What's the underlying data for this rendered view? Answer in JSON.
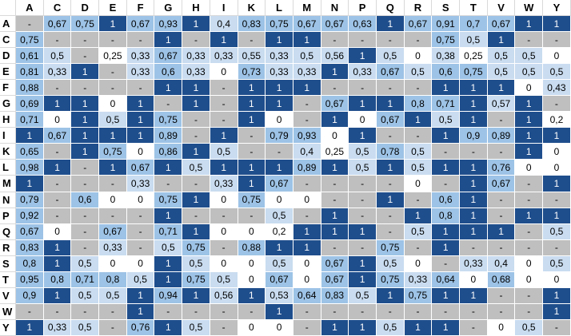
{
  "table": {
    "columns": [
      "A",
      "C",
      "D",
      "E",
      "F",
      "G",
      "H",
      "I",
      "K",
      "L",
      "M",
      "N",
      "P",
      "Q",
      "R",
      "S",
      "T",
      "V",
      "W",
      "Y"
    ],
    "rows": [
      {
        "label": "A",
        "cells": [
          "-",
          "0,67",
          "0,75",
          "1",
          "0,67",
          "0,93",
          "1",
          "0,4",
          "0,83",
          "0,75",
          "0,67",
          "0,67",
          "0,63",
          "1",
          "0,67",
          "0,91",
          "0,7",
          "0,67",
          "1",
          "1"
        ]
      },
      {
        "label": "C",
        "cells": [
          "0,75",
          "-",
          "-",
          "-",
          "-",
          "1",
          "-",
          "1",
          "-",
          "1",
          "1",
          "-",
          "-",
          "-",
          "-",
          "0,75",
          "0,5",
          "1",
          "-",
          "-"
        ]
      },
      {
        "label": "D",
        "cells": [
          "0,61",
          "0,5",
          "-",
          "0,25",
          "0,33",
          "0,67",
          "0,33",
          "0,33",
          "0,55",
          "0,33",
          "0,5",
          "0,56",
          "1",
          "0,5",
          "0",
          "0,38",
          "0,25",
          "0,5",
          "0,5",
          "0"
        ]
      },
      {
        "label": "E",
        "cells": [
          "0,81",
          "0,33",
          "1",
          "-",
          "0,33",
          "0,6",
          "0,33",
          "0",
          "0,73",
          "0,33",
          "0,33",
          "1",
          "0,33",
          "0,67",
          "0,5",
          "0,6",
          "0,75",
          "0,5",
          "0,5",
          "0,5"
        ]
      },
      {
        "label": "F",
        "cells": [
          "0,88",
          "-",
          "-",
          "-",
          "-",
          "1",
          "1",
          "-",
          "1",
          "1",
          "1",
          "-",
          "-",
          "-",
          "-",
          "1",
          "1",
          "1",
          "0",
          "0,43"
        ]
      },
      {
        "label": "G",
        "cells": [
          "0,69",
          "1",
          "1",
          "0",
          "1",
          "-",
          "1",
          "-",
          "1",
          "1",
          "-",
          "0,67",
          "1",
          "1",
          "0,8",
          "0,71",
          "1",
          "0,57",
          "1",
          "-"
        ]
      },
      {
        "label": "H",
        "cells": [
          "0,71",
          "0",
          "1",
          "0,5",
          "1",
          "0,75",
          "-",
          "-",
          "1",
          "0",
          "-",
          "1",
          "0",
          "0,67",
          "1",
          "0,5",
          "1",
          "-",
          "1",
          "0,2"
        ]
      },
      {
        "label": "I",
        "cells": [
          "1",
          "0,67",
          "1",
          "1",
          "1",
          "0,89",
          "-",
          "1",
          "-",
          "0,79",
          "0,93",
          "0",
          "1",
          "-",
          "-",
          "1",
          "0,9",
          "0,89",
          "1",
          "1"
        ]
      },
      {
        "label": "K",
        "cells": [
          "0,65",
          "-",
          "1",
          "0,75",
          "0",
          "0,86",
          "1",
          "0,5",
          "-",
          "-",
          "0,4",
          "0,25",
          "0,5",
          "0,78",
          "0,5",
          "-",
          "-",
          "-",
          "1",
          "0"
        ]
      },
      {
        "label": "L",
        "cells": [
          "0,98",
          "1",
          "-",
          "1",
          "0,67",
          "1",
          "0,5",
          "1",
          "1",
          "1",
          "0,89",
          "1",
          "0,5",
          "1",
          "0,5",
          "1",
          "1",
          "0,76",
          "0",
          "0"
        ]
      },
      {
        "label": "M",
        "cells": [
          "1",
          "-",
          "-",
          "-",
          "0,33",
          "-",
          "-",
          "0,33",
          "1",
          "0,67",
          "-",
          "-",
          "-",
          "-",
          "0",
          "-",
          "1",
          "0,67",
          "-",
          "1"
        ]
      },
      {
        "label": "N",
        "cells": [
          "0,79",
          "-",
          "0,6",
          "0",
          "0",
          "0,75",
          "1",
          "0",
          "0,75",
          "0",
          "0",
          "-",
          "-",
          "1",
          "-",
          "0,6",
          "1",
          "-",
          "-",
          "-"
        ]
      },
      {
        "label": "P",
        "cells": [
          "0,92",
          "-",
          "-",
          "-",
          "-",
          "1",
          "-",
          "-",
          "-",
          "0,5",
          "-",
          "1",
          "-",
          "-",
          "1",
          "0,8",
          "1",
          "-",
          "1",
          "1"
        ]
      },
      {
        "label": "Q",
        "cells": [
          "0,67",
          "0",
          "-",
          "0,67",
          "-",
          "0,71",
          "1",
          "0",
          "0",
          "0,2",
          "1",
          "1",
          "1",
          "-",
          "0,5",
          "1",
          "1",
          "1",
          "-",
          "0,5"
        ]
      },
      {
        "label": "R",
        "cells": [
          "0,83",
          "1",
          "-",
          "0,33",
          "-",
          "0,5",
          "0,75",
          "-",
          "0,88",
          "1",
          "1",
          "-",
          "-",
          "0,75",
          "-",
          "1",
          "-",
          "-",
          "-",
          "-"
        ]
      },
      {
        "label": "S",
        "cells": [
          "0,8",
          "1",
          "0,5",
          "0",
          "0",
          "1",
          "0,5",
          "0",
          "0",
          "0,5",
          "0",
          "0,67",
          "1",
          "0,5",
          "0",
          "-",
          "0,33",
          "0,4",
          "0",
          "0,5"
        ]
      },
      {
        "label": "T",
        "cells": [
          "0,95",
          "0,8",
          "0,71",
          "0,8",
          "0,5",
          "1",
          "0,75",
          "0,5",
          "0",
          "0,67",
          "0",
          "0,67",
          "1",
          "0,75",
          "0,33",
          "0,64",
          "0",
          "0,68",
          "0",
          "0"
        ]
      },
      {
        "label": "V",
        "cells": [
          "0,9",
          "1",
          "0,5",
          "0,5",
          "1",
          "0,94",
          "1",
          "0,56",
          "1",
          "0,53",
          "0,64",
          "0,83",
          "0,5",
          "1",
          "0,75",
          "1",
          "1",
          "-",
          "-",
          "1"
        ]
      },
      {
        "label": "W",
        "cells": [
          "-",
          "-",
          "-",
          "-",
          "1",
          "-",
          "-",
          "-",
          "-",
          "1",
          "-",
          "-",
          "-",
          "-",
          "-",
          "-",
          "-",
          "-",
          "-",
          "1"
        ]
      },
      {
        "label": "Y",
        "cells": [
          "1",
          "0,33",
          "0,5",
          "-",
          "0,76",
          "1",
          "0,5",
          "-",
          "0",
          "0",
          "-",
          "1",
          "1",
          "0,5",
          "1",
          "1",
          "-",
          "0",
          "0,5",
          "-"
        ]
      }
    ]
  }
}
